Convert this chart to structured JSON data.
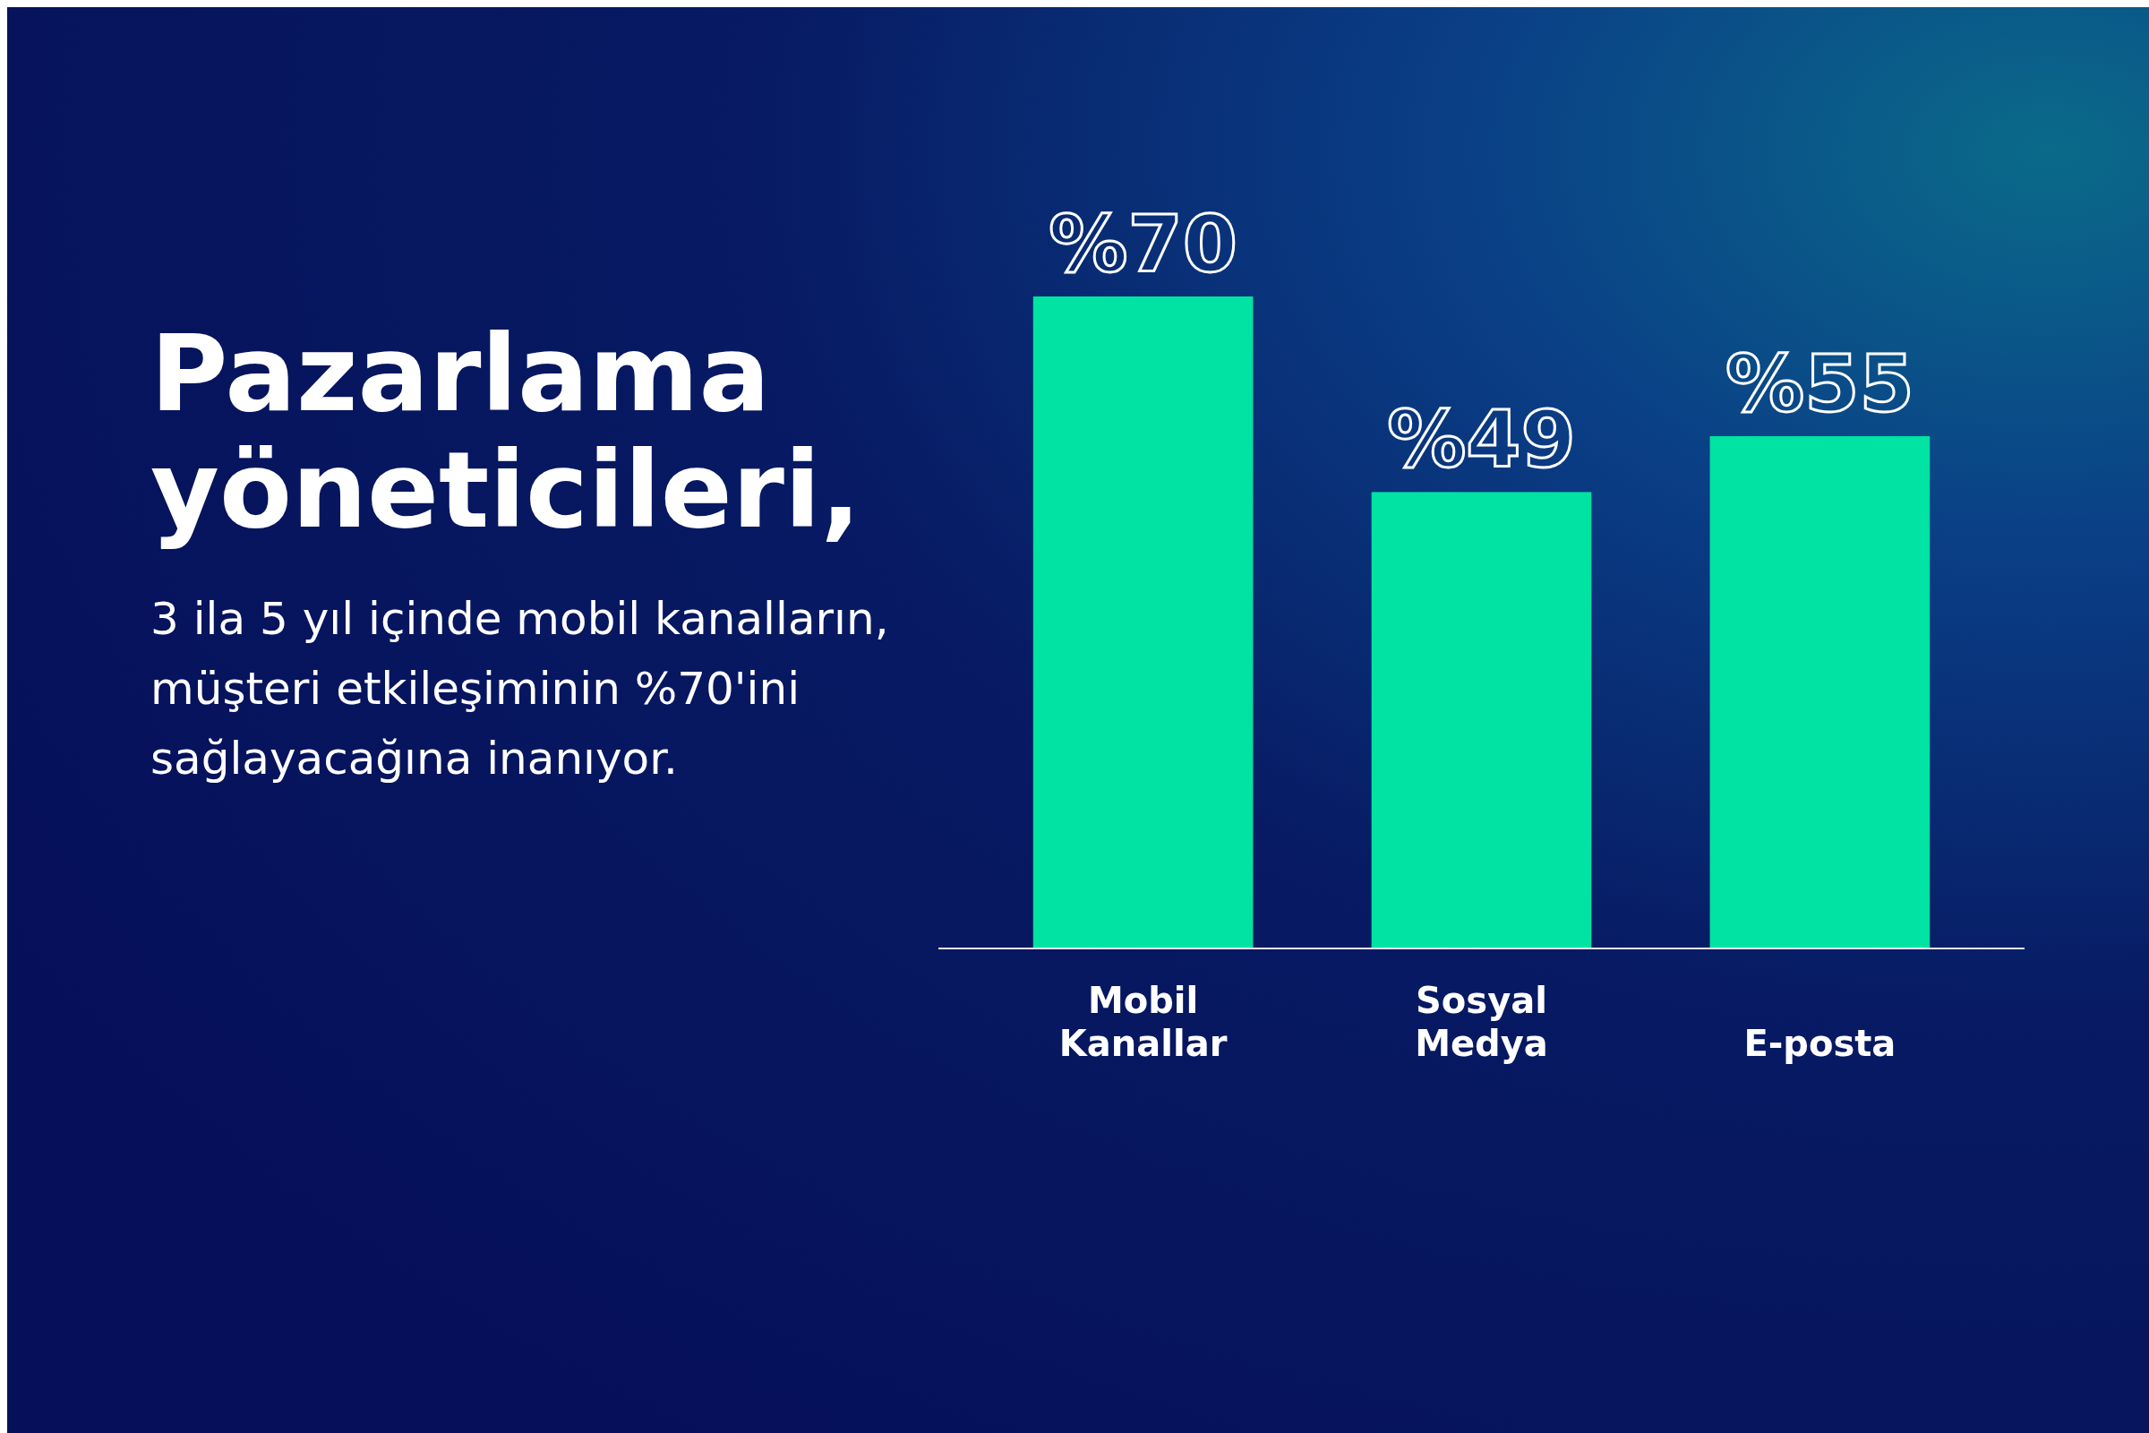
{
  "chart_data": {
    "type": "bar",
    "title": "Pazarlama yöneticileri,",
    "subtitle": "3 ila 5 yıl içinde mobil kanalların, müşteri etkileşiminin %70'ini sağlayacağına inanıyor.",
    "categories": [
      "Mobil Kanallar",
      "Sosyal Medya",
      "E-posta"
    ],
    "values": [
      70,
      49,
      55
    ],
    "value_labels": [
      "%70",
      "%49",
      "%55"
    ],
    "color": "#00e3a2",
    "relative": false
  }
}
